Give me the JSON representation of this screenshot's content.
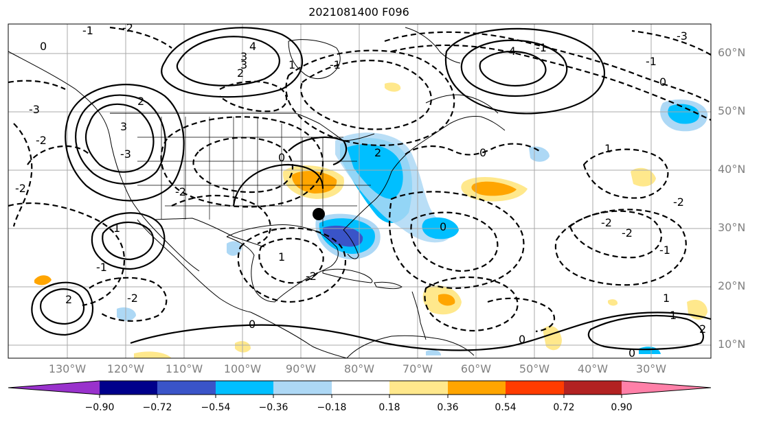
{
  "title": "2021081400 F096",
  "lat_labels": [
    "60°N",
    "50°N",
    "40°N",
    "30°N",
    "20°N",
    "10°N"
  ],
  "lon_labels": [
    "130°W",
    "120°W",
    "110°W",
    "100°W",
    "90°W",
    "80°W",
    "70°W",
    "60°W",
    "50°W",
    "40°W",
    "30°W"
  ],
  "colorbar": {
    "ticks": [
      "−0.90",
      "−0.72",
      "−0.54",
      "−0.36",
      "−0.18",
      "0.18",
      "0.36",
      "0.54",
      "0.72",
      "0.90"
    ],
    "colors": [
      "#9932cc",
      "#00008b",
      "#3a54c8",
      "#00bfff",
      "#add8f5",
      "#ffffff",
      "#ffe88c",
      "#ffa500",
      "#ff3c00",
      "#b22222",
      "#ff80a8"
    ]
  },
  "contour_labels": [
    "-1",
    "-2",
    "0",
    "-3",
    "4",
    "3",
    "2",
    "1",
    "-2",
    "-3",
    "0",
    "-2",
    "-1",
    "-2",
    "-4",
    "-3",
    "0",
    "-1",
    "1",
    "-2",
    "-1",
    "2",
    "3",
    "0",
    "1",
    "2",
    "-2",
    "0",
    "1",
    "2",
    "3",
    "-2",
    "0",
    "-1",
    "-2",
    "1",
    "0",
    "-1",
    "0",
    "1",
    "-2",
    "2"
  ],
  "marker": "storm-position"
}
